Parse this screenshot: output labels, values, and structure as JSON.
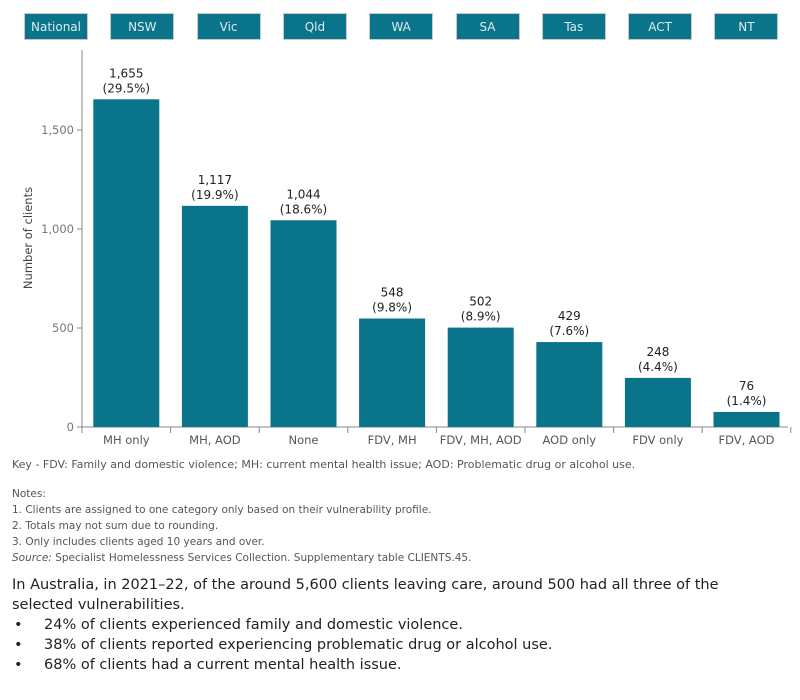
{
  "filters": [
    "National",
    "NSW",
    "Vic",
    "Qld",
    "WA",
    "SA",
    "Tas",
    "ACT",
    "NT"
  ],
  "colors": {
    "bar": "#0a748a",
    "button": "#0a748a"
  },
  "chart_data": {
    "type": "bar",
    "categories": [
      "MH only",
      "MH, AOD",
      "None",
      "FDV, MH",
      "FDV, MH, AOD",
      "AOD only",
      "FDV only",
      "FDV, AOD"
    ],
    "values": [
      1655,
      1117,
      1044,
      548,
      502,
      429,
      248,
      76
    ],
    "value_labels": [
      "1,655",
      "1,117",
      "1,044",
      "548",
      "502",
      "429",
      "248",
      "76"
    ],
    "percent_labels": [
      "(29.5%)",
      "(19.9%)",
      "(18.6%)",
      "(9.8%)",
      "(8.9%)",
      "(7.6%)",
      "(4.4%)",
      "(1.4%)"
    ],
    "ylabel": "Number of clients",
    "yticks": [
      0,
      500,
      1000,
      1500
    ],
    "ytick_labels": [
      "0",
      "500",
      "1,000",
      "1,500"
    ],
    "ylim": [
      0,
      1900
    ],
    "grid": false
  },
  "key": "Key - FDV: Family and domestic violence; MH: current mental health issue; AOD: Problematic drug or alcohol use.",
  "notes": {
    "heading": "Notes:",
    "items": [
      "1.  Clients are assigned to one category only based on their vulnerability profile.",
      "2.  Totals may not sum due to rounding.",
      "3.  Only includes clients aged 10 years and over."
    ],
    "source_label": "Source:",
    "source_text": " Specialist Homelessness Services Collection. Supplementary table CLIENTS.45."
  },
  "summary": {
    "intro": "In Australia, in 2021–22, of the around 5,600 clients leaving care, around 500 had all three of the selected vulnerabilities.",
    "bullets": [
      "24% of clients experienced family and domestic violence.",
      "38% of clients reported experiencing problematic drug or alcohol use.",
      "68% of clients had a current mental health issue."
    ]
  }
}
